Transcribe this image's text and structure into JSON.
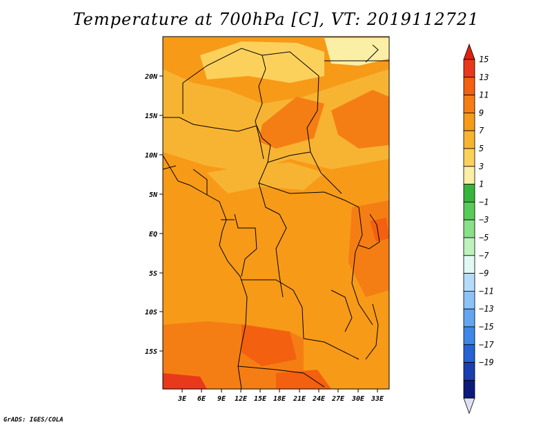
{
  "title": "Temperature at 700hPa [C], VT: 2019112721",
  "credit": "GrADS: IGES/COLA",
  "map": {
    "lat_labels": [
      "20N",
      "15N",
      "10N",
      "5N",
      "EQ",
      "5S",
      "10S",
      "15S"
    ],
    "lon_labels": [
      "3E",
      "6E",
      "9E",
      "12E",
      "15E",
      "18E",
      "21E",
      "24E",
      "27E",
      "30E",
      "33E"
    ]
  },
  "colorbar": {
    "labels": [
      "15",
      "13",
      "11",
      "9",
      "7",
      "5",
      "3",
      "1",
      "−1",
      "−3",
      "−5",
      "−7",
      "−9",
      "−11",
      "−13",
      "−15",
      "−17",
      "−19"
    ],
    "colors": [
      "#e8391b",
      "#f3600f",
      "#f57e14",
      "#f79a18",
      "#f7b432",
      "#fbd15c",
      "#fbeea5",
      "#38b33b",
      "#58cc58",
      "#88e088",
      "#bdf2bd",
      "#e1f8f3",
      "#b4dcfa",
      "#8cc3f7",
      "#62a6f0",
      "#3d88e6",
      "#2563d4",
      "#1a3fb0",
      "#0c1a7a"
    ],
    "top_color": "#e02010",
    "bottom_color": "#dde0f5"
  }
}
